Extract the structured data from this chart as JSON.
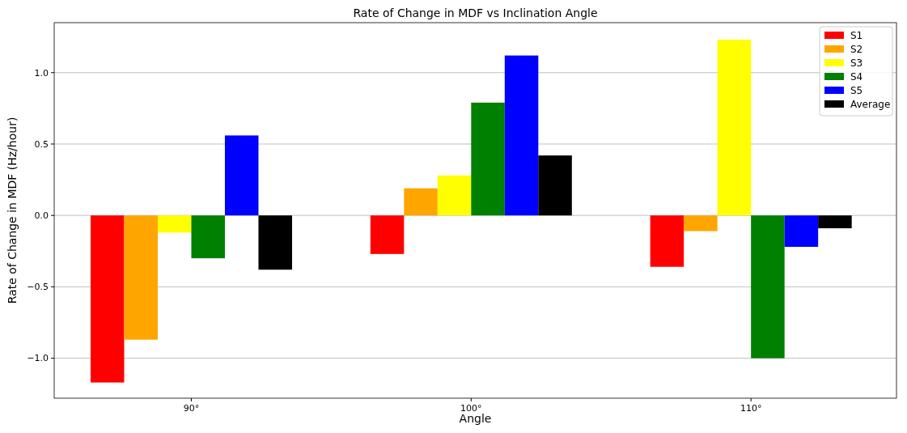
{
  "chart_data": {
    "type": "bar",
    "title": "Rate of Change in MDF vs Inclination Angle",
    "xlabel": "Angle",
    "ylabel": "Rate of Change in MDF (Hz/hour)",
    "categories": [
      "90°",
      "100°",
      "110°"
    ],
    "series": [
      {
        "name": "S1",
        "color": "#ff0000",
        "values": [
          -1.17,
          -0.27,
          -0.36
        ]
      },
      {
        "name": "S2",
        "color": "#ffa500",
        "values": [
          -0.87,
          0.19,
          -0.11
        ]
      },
      {
        "name": "S3",
        "color": "#ffff00",
        "values": [
          -0.12,
          0.28,
          1.23
        ]
      },
      {
        "name": "S4",
        "color": "#008000",
        "values": [
          -0.3,
          0.79,
          -1.0
        ]
      },
      {
        "name": "S5",
        "color": "#0000ff",
        "values": [
          0.56,
          1.12,
          -0.22
        ]
      },
      {
        "name": "Average",
        "color": "#000000",
        "values": [
          -0.38,
          0.42,
          -0.09
        ]
      }
    ],
    "ylim": [
      -1.28,
      1.35
    ],
    "yticks": [
      {
        "value": -1.0,
        "label": "−1.0"
      },
      {
        "value": -0.5,
        "label": "−0.5"
      },
      {
        "value": 0,
        "label": "0.0"
      },
      {
        "value": 0.5,
        "label": "0.5"
      },
      {
        "value": 1.0,
        "label": "1.0"
      }
    ],
    "grid": "y",
    "legend": "top right"
  }
}
